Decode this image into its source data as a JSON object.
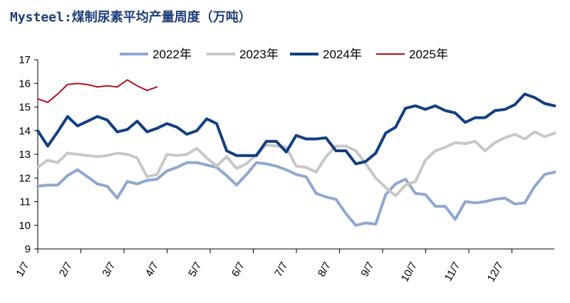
{
  "title": "Mysteel:煤制尿素平均产量周度（万吨）",
  "chart_data": {
    "type": "line",
    "title": "Mysteel:煤制尿素平均产量周度（万吨）",
    "xlabel": "",
    "ylabel": "",
    "ylim": [
      9,
      17
    ],
    "yticks": [
      9,
      10,
      11,
      12,
      13,
      14,
      15,
      16,
      17
    ],
    "xticks": [
      "1/7",
      "2/7",
      "3/7",
      "4/7",
      "5/7",
      "6/7",
      "7/7",
      "8/7",
      "9/7",
      "10/7",
      "11/7",
      "12/7"
    ],
    "grid": false,
    "legend_position": "top",
    "series": [
      {
        "name": "2022年",
        "color": "#8fa8cf",
        "values": [
          11.65,
          11.7,
          11.7,
          12.1,
          12.35,
          12.05,
          11.75,
          11.65,
          11.15,
          11.85,
          11.75,
          11.9,
          11.95,
          12.3,
          12.45,
          12.65,
          12.65,
          12.55,
          12.45,
          12.1,
          11.7,
          12.15,
          12.65,
          12.6,
          12.5,
          12.35,
          12.15,
          12.05,
          11.35,
          11.2,
          11.1,
          10.5,
          10.0,
          10.1,
          10.05,
          11.3,
          11.75,
          11.95,
          11.35,
          11.3,
          10.8,
          10.8,
          10.25,
          11.0,
          10.95,
          11.0,
          11.1,
          11.15,
          10.9,
          10.95,
          11.65,
          12.15,
          12.25
        ]
      },
      {
        "name": "2023年",
        "color": "#c8c8c8",
        "values": [
          12.45,
          12.75,
          12.65,
          13.05,
          13.0,
          12.95,
          12.9,
          12.95,
          13.05,
          13.0,
          12.85,
          12.05,
          12.15,
          13.0,
          12.95,
          13.0,
          13.25,
          12.85,
          12.5,
          12.9,
          12.4,
          12.6,
          13.0,
          13.4,
          13.35,
          13.3,
          12.5,
          12.45,
          12.25,
          12.9,
          13.35,
          13.35,
          13.15,
          12.6,
          12.0,
          11.6,
          11.25,
          11.7,
          11.85,
          12.75,
          13.15,
          13.3,
          13.5,
          13.45,
          13.55,
          13.15,
          13.5,
          13.7,
          13.85,
          13.65,
          13.95,
          13.75,
          13.9
        ]
      },
      {
        "name": "2024年",
        "color": "#123f84",
        "values": [
          14.0,
          13.35,
          13.95,
          14.6,
          14.2,
          14.4,
          14.6,
          14.45,
          13.95,
          14.05,
          14.4,
          13.95,
          14.1,
          14.3,
          14.15,
          13.85,
          14.0,
          14.5,
          14.3,
          13.15,
          12.95,
          12.95,
          12.95,
          13.55,
          13.55,
          13.1,
          13.8,
          13.65,
          13.65,
          13.7,
          13.15,
          13.15,
          12.6,
          12.7,
          13.05,
          13.9,
          14.15,
          14.95,
          15.05,
          14.9,
          15.05,
          14.85,
          14.75,
          14.35,
          14.55,
          14.55,
          14.85,
          14.9,
          15.1,
          15.55,
          15.4,
          15.15,
          15.05
        ]
      },
      {
        "name": "2025年",
        "color": "#b1121c",
        "values": [
          15.35,
          15.2,
          15.55,
          15.95,
          16.0,
          15.95,
          15.85,
          15.9,
          15.85,
          16.15,
          15.9,
          15.7,
          15.85
        ]
      }
    ]
  }
}
